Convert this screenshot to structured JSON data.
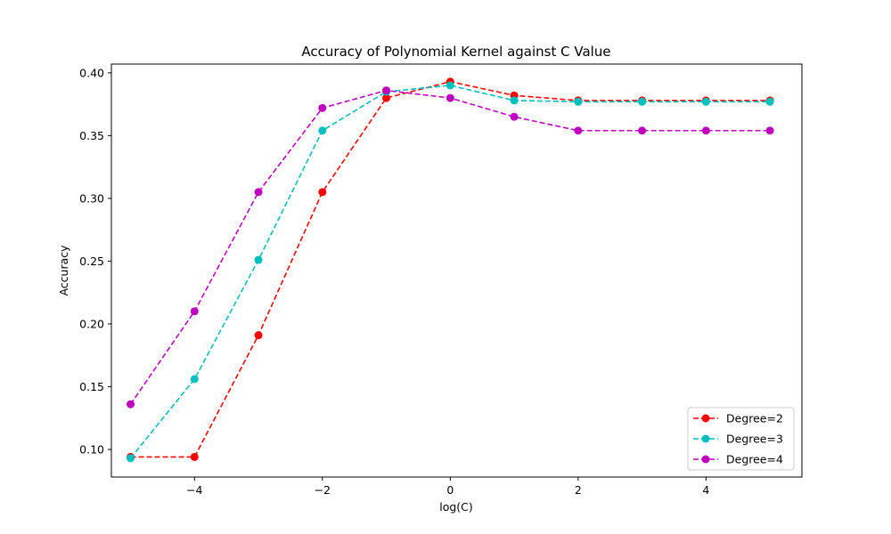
{
  "chart_data": {
    "type": "line",
    "title": "Accuracy of Polynomial Kernel against C Value",
    "xlabel": "log(C)",
    "ylabel": "Accuracy",
    "xlim": [
      -5.3,
      5.5
    ],
    "ylim": [
      0.078,
      0.407
    ],
    "xticks": [
      -4,
      -2,
      0,
      2,
      4
    ],
    "xtick_labels": [
      "−4",
      "−2",
      "0",
      "2",
      "4"
    ],
    "yticks": [
      0.1,
      0.15,
      0.2,
      0.25,
      0.3,
      0.35,
      0.4
    ],
    "ytick_labels": [
      "0.10",
      "0.15",
      "0.20",
      "0.25",
      "0.30",
      "0.35",
      "0.40"
    ],
    "grid": false,
    "legend_position": "bottom-right",
    "x": [
      -5,
      -4,
      -3,
      -2,
      -1,
      0,
      1,
      2,
      3,
      4,
      5
    ],
    "series": [
      {
        "name": "Degree=2",
        "color": "#ff0000",
        "line_style": "dashed",
        "marker": "circle",
        "values": [
          0.094,
          0.094,
          0.191,
          0.305,
          0.38,
          0.393,
          0.382,
          0.378,
          0.378,
          0.378,
          0.378
        ]
      },
      {
        "name": "Degree=3",
        "color": "#00bfbf",
        "line_style": "dashed",
        "marker": "circle",
        "values": [
          0.093,
          0.156,
          0.251,
          0.354,
          0.385,
          0.39,
          0.378,
          0.377,
          0.377,
          0.377,
          0.377
        ]
      },
      {
        "name": "Degree=4",
        "color": "#bf00bf",
        "line_style": "dashed",
        "marker": "circle",
        "values": [
          0.136,
          0.21,
          0.305,
          0.372,
          0.386,
          0.38,
          0.365,
          0.354,
          0.354,
          0.354,
          0.354
        ]
      }
    ]
  }
}
